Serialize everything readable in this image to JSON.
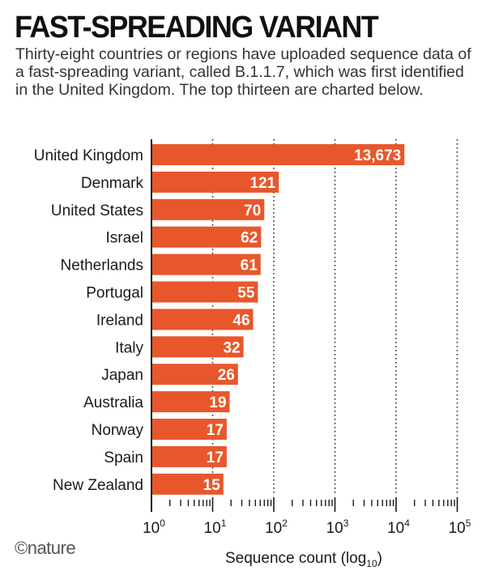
{
  "chart_data": {
    "type": "bar",
    "orientation": "horizontal",
    "title": "FAST-SPREADING VARIANT",
    "subtitle": "Thirty-eight countries or regions have uploaded sequence data of a fast-spreading variant, called B.1.1.7, which was first identified in the United Kingdom. The top thirteen are charted below.",
    "categories": [
      "United Kingdom",
      "Denmark",
      "United States",
      "Israel",
      "Netherlands",
      "Portugal",
      "Ireland",
      "Italy",
      "Japan",
      "Australia",
      "Norway",
      "Spain",
      "New Zealand"
    ],
    "values": [
      13673,
      121,
      70,
      62,
      61,
      55,
      46,
      32,
      26,
      19,
      17,
      17,
      15
    ],
    "value_labels": [
      "13,673",
      "121",
      "70",
      "62",
      "61",
      "55",
      "46",
      "32",
      "26",
      "19",
      "17",
      "17",
      "15"
    ],
    "xscale": "log10",
    "xlim": [
      1,
      100000
    ],
    "xticks": [
      {
        "base": "10",
        "exp": "0"
      },
      {
        "base": "10",
        "exp": "1"
      },
      {
        "base": "10",
        "exp": "2"
      },
      {
        "base": "10",
        "exp": "3"
      },
      {
        "base": "10",
        "exp": "4"
      },
      {
        "base": "10",
        "exp": "5"
      }
    ],
    "xlabel": "Sequence count (log",
    "xlabel_sub": "10",
    "xlabel_close": ")",
    "grid": "dotted vertical at decades",
    "bar_color": "#e8572b"
  },
  "footer": {
    "brand": "©nature"
  }
}
